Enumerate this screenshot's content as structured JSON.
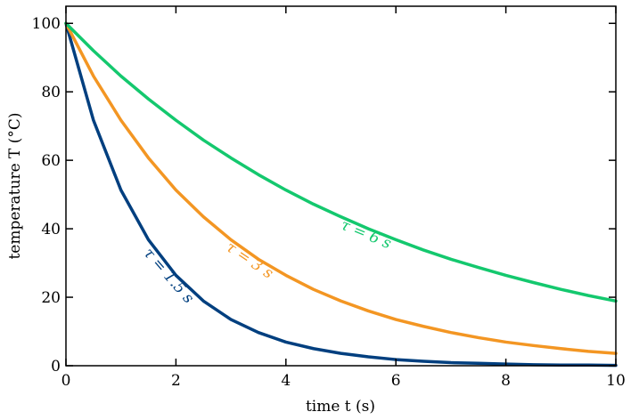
{
  "chart_data": {
    "type": "line",
    "title": "",
    "xlabel": "time t (s)",
    "ylabel": "temperature T (°C)",
    "xlim": [
      0,
      10
    ],
    "ylim": [
      0,
      105
    ],
    "xticks": [
      0,
      2,
      4,
      6,
      8,
      10
    ],
    "yticks": [
      0,
      20,
      40,
      60,
      80,
      100
    ],
    "grid": false,
    "legend": "none",
    "series": [
      {
        "name": "τ = 1.5 s",
        "color": "#003f7f",
        "x": [
          0,
          0.5,
          1,
          1.5,
          2,
          2.5,
          3,
          3.5,
          4,
          4.5,
          5,
          5.5,
          6,
          6.5,
          7,
          7.5,
          8,
          8.5,
          9,
          9.5,
          10
        ],
        "values": [
          100,
          71.7,
          51.3,
          36.8,
          26.4,
          18.9,
          13.5,
          9.7,
          6.9,
          5.0,
          3.6,
          2.6,
          1.8,
          1.3,
          0.9,
          0.7,
          0.5,
          0.3,
          0.2,
          0.2,
          0.1
        ]
      },
      {
        "name": "τ = 3 s",
        "color": "#f39623",
        "x": [
          0,
          0.5,
          1,
          1.5,
          2,
          2.5,
          3,
          3.5,
          4,
          4.5,
          5,
          5.5,
          6,
          6.5,
          7,
          7.5,
          8,
          8.5,
          9,
          9.5,
          10
        ],
        "values": [
          100,
          84.6,
          71.7,
          60.7,
          51.3,
          43.5,
          36.8,
          31.1,
          26.4,
          22.3,
          18.9,
          16.0,
          13.5,
          11.5,
          9.7,
          8.2,
          6.9,
          5.9,
          5.0,
          4.2,
          3.6
        ]
      },
      {
        "name": "τ = 6 s",
        "color": "#14c86e",
        "x": [
          0,
          0.5,
          1,
          1.5,
          2,
          2.5,
          3,
          3.5,
          4,
          4.5,
          5,
          5.5,
          6,
          6.5,
          7,
          7.5,
          8,
          8.5,
          9,
          9.5,
          10
        ],
        "values": [
          100,
          92.0,
          84.6,
          77.9,
          71.7,
          65.9,
          60.7,
          55.8,
          51.3,
          47.2,
          43.5,
          40.0,
          36.8,
          33.8,
          31.1,
          28.7,
          26.4,
          24.3,
          22.3,
          20.5,
          18.9
        ]
      }
    ]
  }
}
